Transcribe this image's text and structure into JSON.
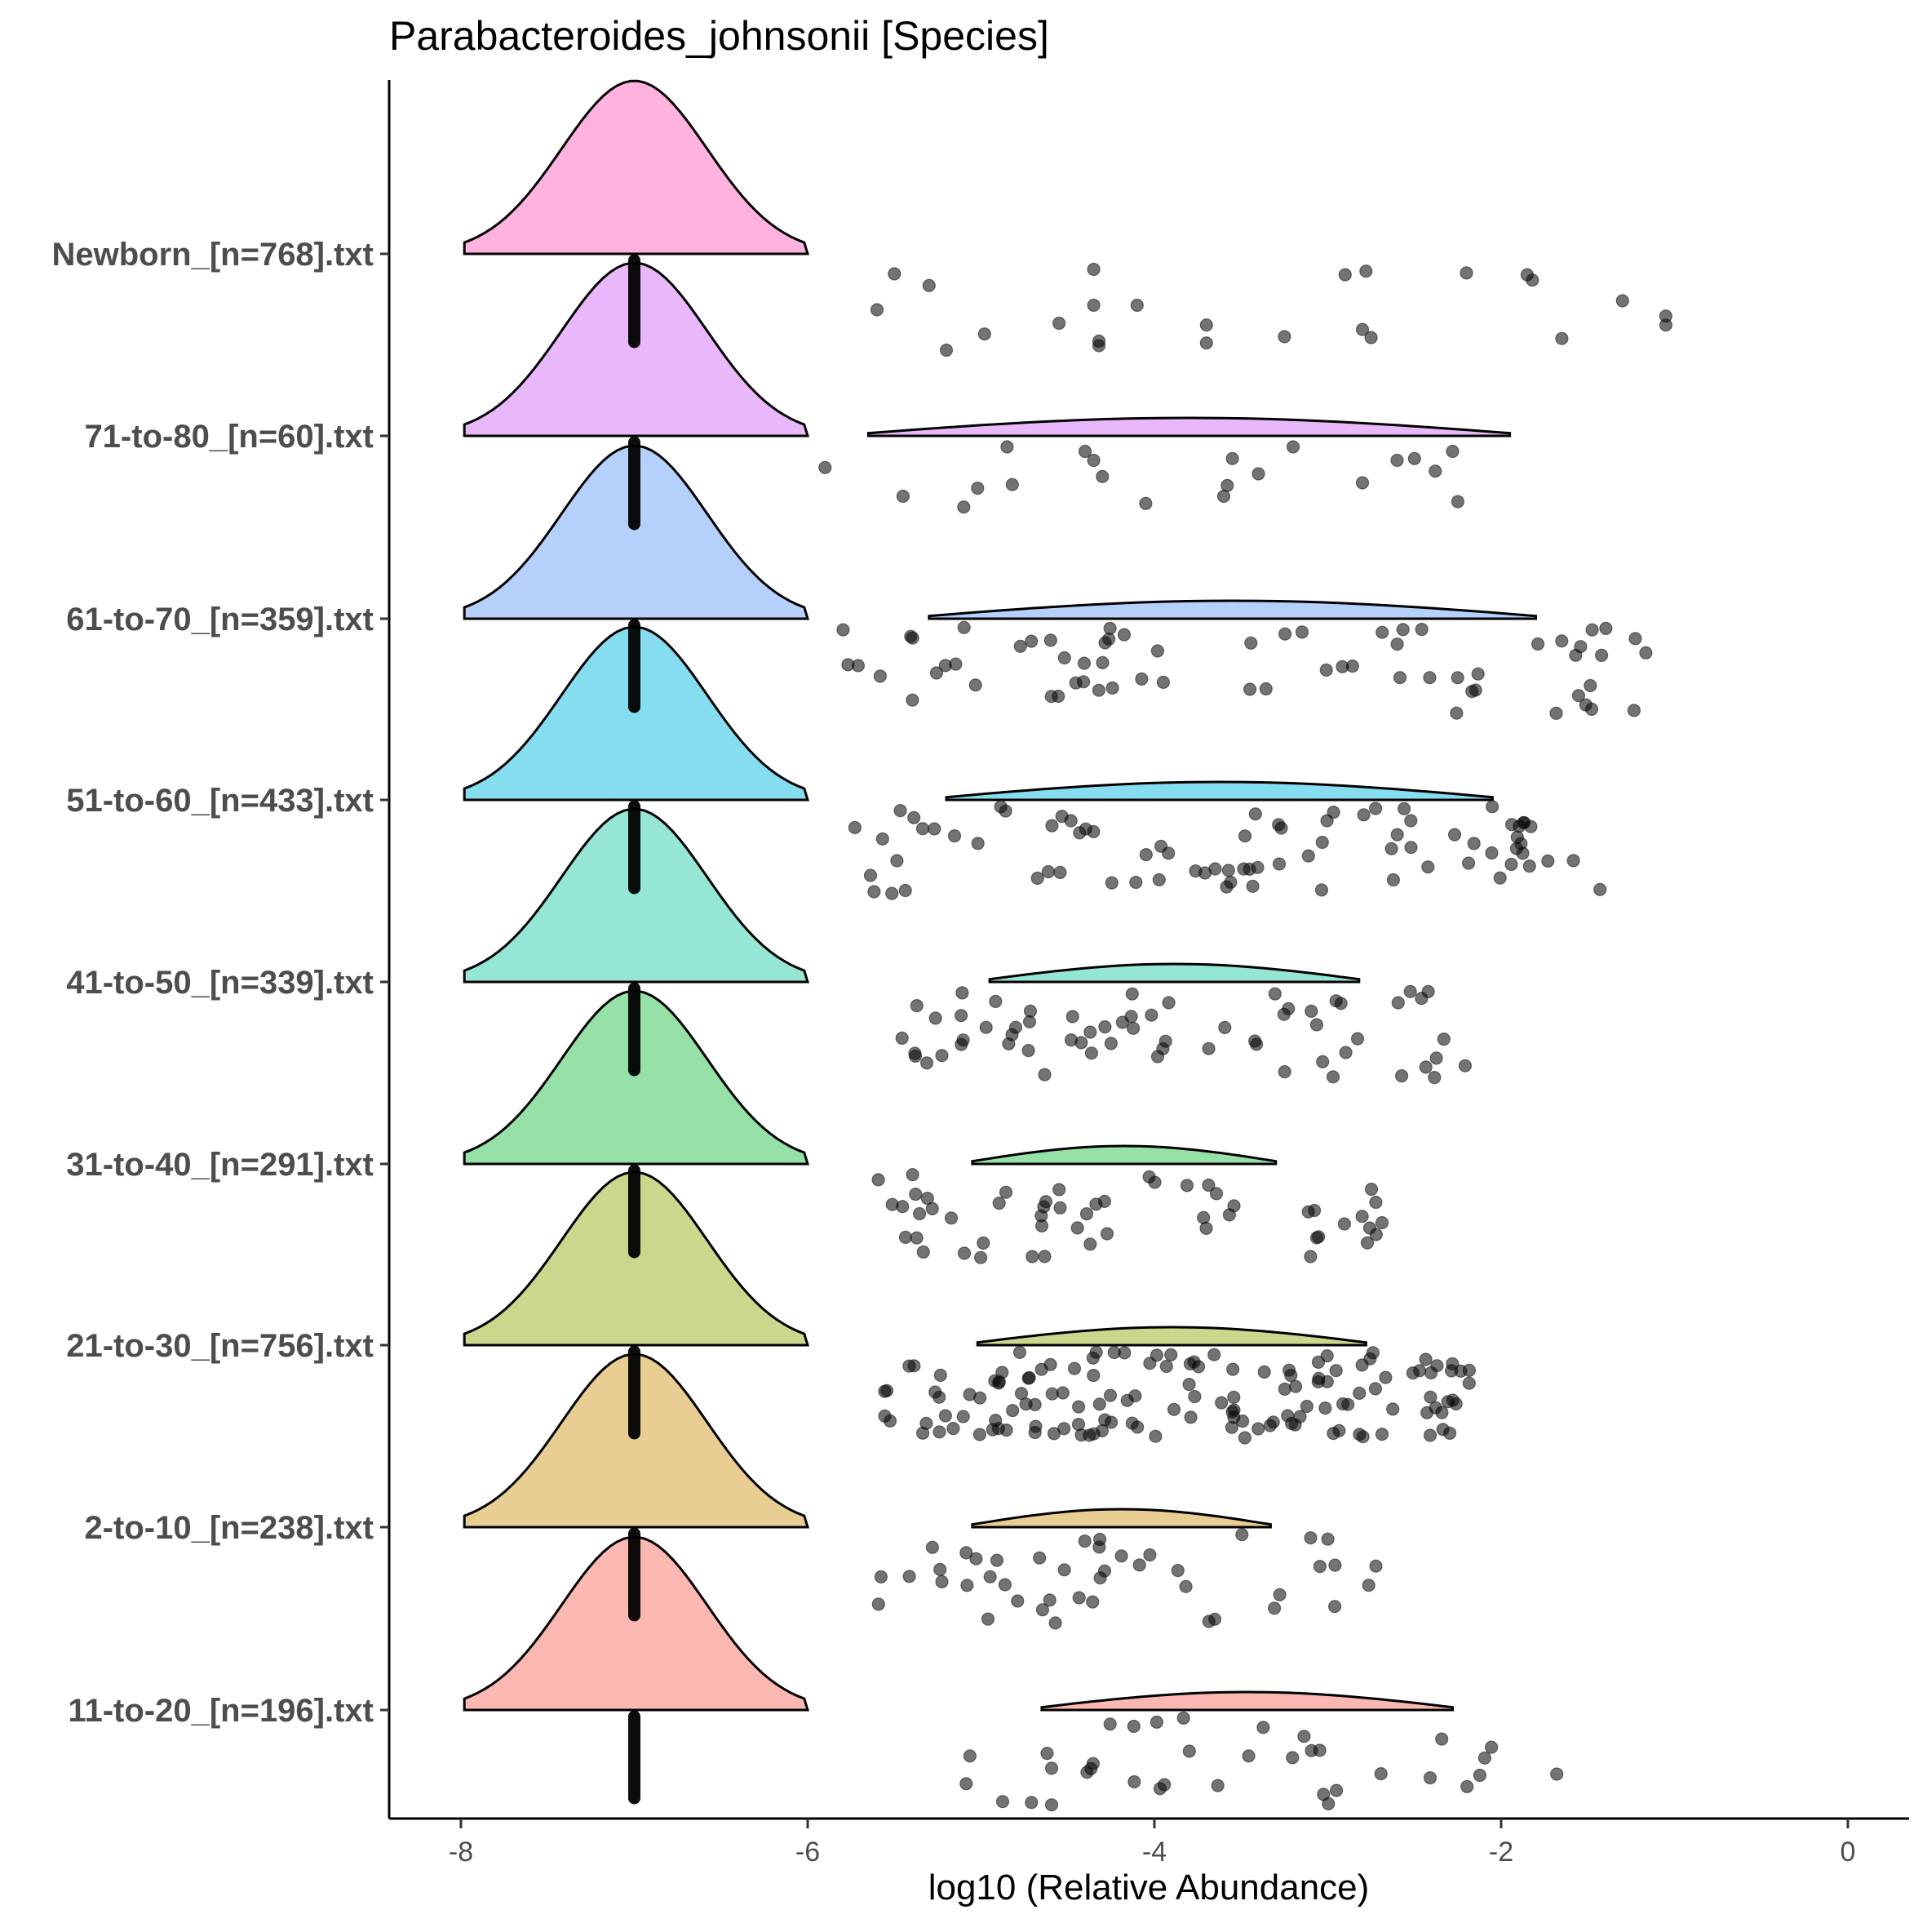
{
  "chart_data": {
    "type": "raincloud",
    "title": "Parabacteroides_johnsonii [Species]",
    "xlabel": "log10 (Relative Abundance)",
    "ylabel": "",
    "xlim": [
      -8.4,
      0.5
    ],
    "xticks": [
      -8,
      -6,
      -4,
      -2,
      0
    ],
    "xtick_labels": [
      "-8",
      "-6",
      "-4",
      "-2",
      "0"
    ],
    "legend": "none",
    "groups": [
      {
        "label": "Newborn_[n=768].txt",
        "color": "#FF7FC8",
        "cloud_range": null,
        "points": [
          [
            -5.6,
            0.55
          ],
          [
            -5.5,
            0.15
          ],
          [
            -5.3,
            0.28
          ],
          [
            -5.2,
            1.0
          ],
          [
            -4.98,
            0.82
          ],
          [
            -4.55,
            0.7
          ],
          [
            -4.35,
            0.1
          ],
          [
            -4.35,
            0.5
          ],
          [
            -4.32,
            0.9
          ],
          [
            -4.32,
            0.95
          ],
          [
            -4.1,
            0.5
          ],
          [
            -3.7,
            0.72
          ],
          [
            -3.7,
            0.92
          ],
          [
            -3.25,
            0.85
          ],
          [
            -2.9,
            0.16
          ],
          [
            -2.8,
            0.77
          ],
          [
            -2.78,
            0.12
          ],
          [
            -2.75,
            0.86
          ],
          [
            -2.2,
            0.14
          ],
          [
            -1.85,
            0.16
          ],
          [
            -1.82,
            0.22
          ],
          [
            -1.65,
            0.87
          ],
          [
            -1.3,
            0.45
          ],
          [
            -1.05,
            0.62
          ],
          [
            -1.05,
            0.72
          ]
        ]
      },
      {
        "label": "71-to-80_[n=60].txt",
        "color": "#DA88F7",
        "cloud_range": [
          -5.65,
          -1.95
        ],
        "points": [
          [
            -5.9,
            0.28
          ],
          [
            -5.45,
            0.6
          ],
          [
            -5.1,
            0.72
          ],
          [
            -5.02,
            0.51
          ],
          [
            -4.85,
            0.05
          ],
          [
            -4.82,
            0.47
          ],
          [
            -4.4,
            0.1
          ],
          [
            -4.35,
            0.2
          ],
          [
            -4.3,
            0.38
          ],
          [
            -4.05,
            0.68
          ],
          [
            -3.6,
            0.6
          ],
          [
            -3.58,
            0.48
          ],
          [
            -3.55,
            0.18
          ],
          [
            -3.4,
            0.35
          ],
          [
            -3.2,
            0.05
          ],
          [
            -2.8,
            0.45
          ],
          [
            -2.6,
            0.2
          ],
          [
            -2.5,
            0.18
          ],
          [
            -2.38,
            0.32
          ],
          [
            -2.28,
            0.1
          ],
          [
            -2.25,
            0.66
          ]
        ]
      },
      {
        "label": "61-to-70_[n=359].txt",
        "color": "#85B1FA",
        "cloud_range": [
          -5.3,
          -1.8
        ],
        "points": "generated"
      },
      {
        "label": "51-to-60_[n=433].txt",
        "color": "#35C7E6",
        "cloud_range": [
          -5.2,
          -2.05
        ],
        "points": "generated"
      },
      {
        "label": "41-to-50_[n=339].txt",
        "color": "#4FD6B8",
        "cloud_range": [
          -4.95,
          -2.82
        ],
        "points": "generated"
      },
      {
        "label": "31-to-40_[n=291].txt",
        "color": "#4FCD6D",
        "cloud_range": [
          -5.05,
          -3.3
        ],
        "points": "generated"
      },
      {
        "label": "21-to-30_[n=756].txt",
        "color": "#A8BD3F",
        "cloud_range": [
          -5.02,
          -2.78
        ],
        "points": "generated"
      },
      {
        "label": "2-to-10_[n=238].txt",
        "color": "#D8AD4A",
        "cloud_range": [
          -5.05,
          -3.33
        ],
        "points": "generated"
      },
      {
        "label": "11-to-20_[n=196].txt",
        "color": "#F8887E",
        "cloud_range": [
          -4.65,
          -2.28
        ],
        "points": "generated"
      }
    ],
    "baseline_value": -7.0,
    "baseline_sd": 0.42
  }
}
